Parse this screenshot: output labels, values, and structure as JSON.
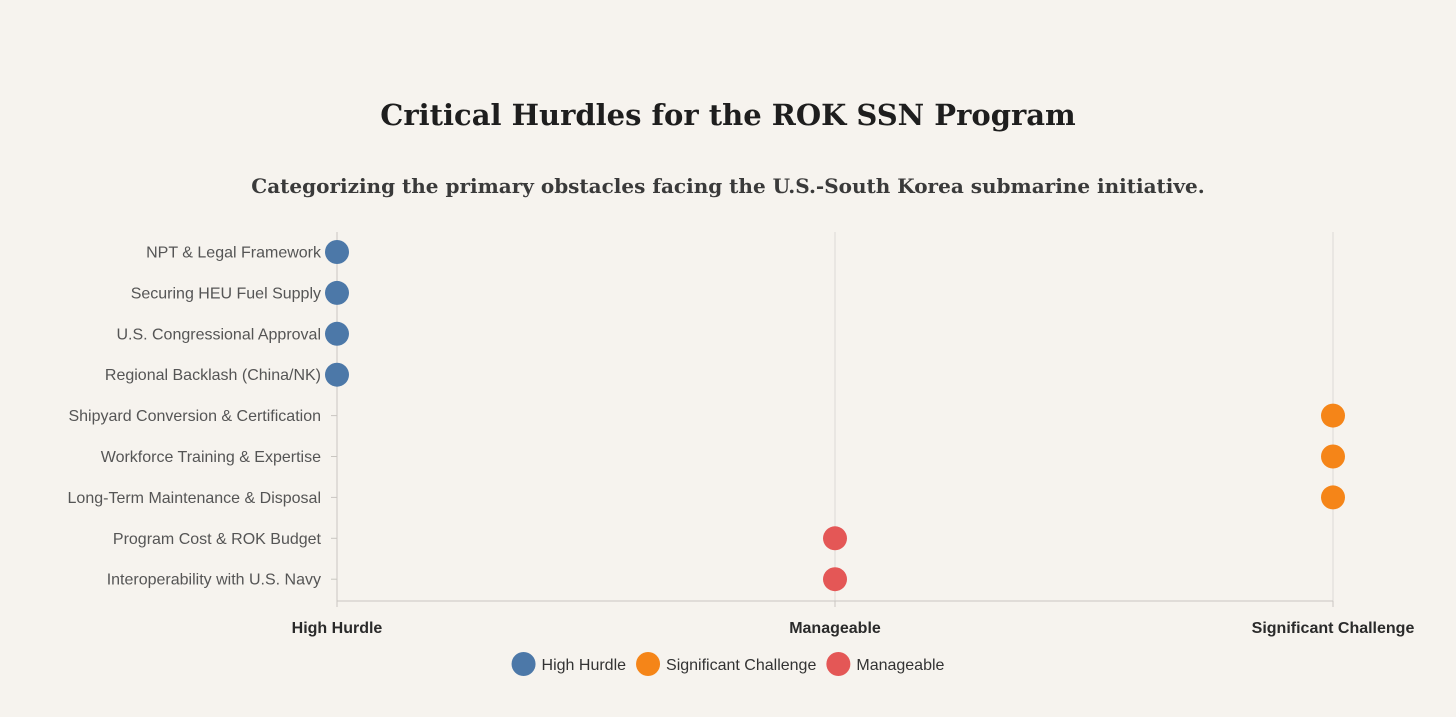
{
  "chart_data": {
    "type": "scatter",
    "title": "Critical Hurdles for the ROK SSN Program",
    "subtitle": "Categorizing the primary obstacles facing the U.S.-South Korea submarine initiative.",
    "x_categories": [
      "High Hurdle",
      "Manageable",
      "Significant Challenge"
    ],
    "y_categories": [
      "NPT & Legal Framework",
      "Securing HEU Fuel Supply",
      "U.S. Congressional Approval",
      "Regional Backlash (China/NK)",
      "Shipyard Conversion & Certification",
      "Workforce Training & Expertise",
      "Long-Term Maintenance & Disposal",
      "Program Cost & ROK Budget",
      "Interoperability with U.S. Navy"
    ],
    "points": [
      {
        "y": "NPT & Legal Framework",
        "x": "High Hurdle"
      },
      {
        "y": "Securing HEU Fuel Supply",
        "x": "High Hurdle"
      },
      {
        "y": "U.S. Congressional Approval",
        "x": "High Hurdle"
      },
      {
        "y": "Regional Backlash (China/NK)",
        "x": "High Hurdle"
      },
      {
        "y": "Shipyard Conversion & Certification",
        "x": "Significant Challenge"
      },
      {
        "y": "Workforce Training & Expertise",
        "x": "Significant Challenge"
      },
      {
        "y": "Long-Term Maintenance & Disposal",
        "x": "Significant Challenge"
      },
      {
        "y": "Program Cost & ROK Budget",
        "x": "Manageable"
      },
      {
        "y": "Interoperability with U.S. Navy",
        "x": "Manageable"
      }
    ],
    "legend": [
      {
        "name": "High Hurdle",
        "color": "#4c78a8"
      },
      {
        "name": "Significant Challenge",
        "color": "#f58518"
      },
      {
        "name": "Manageable",
        "color": "#e45756"
      }
    ],
    "grid": true,
    "legend_position": "bottom"
  }
}
